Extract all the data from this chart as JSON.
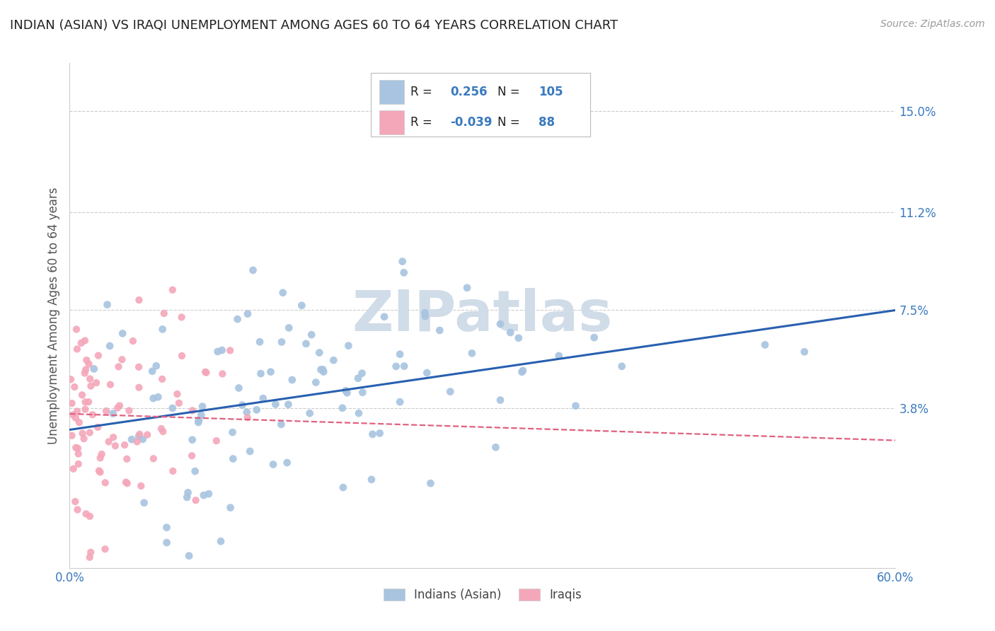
{
  "title": "INDIAN (ASIAN) VS IRAQI UNEMPLOYMENT AMONG AGES 60 TO 64 YEARS CORRELATION CHART",
  "source": "Source: ZipAtlas.com",
  "ylabel": "Unemployment Among Ages 60 to 64 years",
  "xmin": 0.0,
  "xmax": 0.6,
  "ymin": -0.022,
  "ymax": 0.168,
  "yticks": [
    0.0,
    0.038,
    0.075,
    0.112,
    0.15
  ],
  "ytick_labels": [
    "",
    "3.8%",
    "7.5%",
    "11.2%",
    "15.0%"
  ],
  "xticks": [
    0.0,
    0.1,
    0.2,
    0.3,
    0.4,
    0.5,
    0.6
  ],
  "xtick_labels": [
    "0.0%",
    "",
    "",
    "",
    "",
    "",
    "60.0%"
  ],
  "blue_color": "#a8c4e0",
  "pink_color": "#f4a7b9",
  "blue_line_color": "#2860b0",
  "pink_line_color": "#e06080",
  "label_color": "#3a7abf",
  "title_color": "#222222",
  "grid_color": "#cccccc",
  "watermark_color": "#d0dce8",
  "legend_R1": "0.256",
  "legend_N1": "105",
  "legend_R2": "-0.039",
  "legend_N2": "88",
  "legend_label1": "Indians (Asian)",
  "legend_label2": "Iraqis",
  "blue_trend_x": [
    0.0,
    0.6
  ],
  "blue_trend_y": [
    0.03,
    0.075
  ],
  "pink_trend_x": [
    0.0,
    0.6
  ],
  "pink_trend_y": [
    0.036,
    0.026
  ],
  "random_seed_blue": 42,
  "random_seed_pink": 99
}
